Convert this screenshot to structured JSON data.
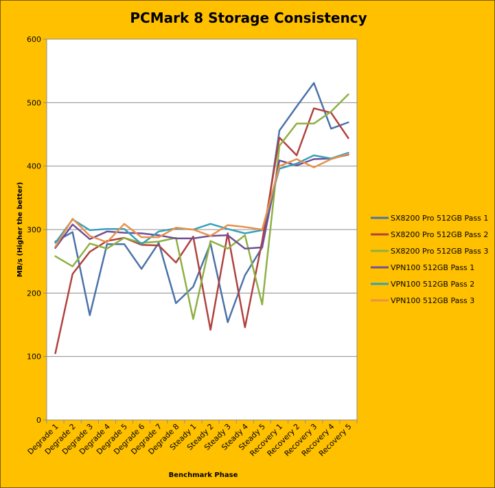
{
  "chart_data": {
    "type": "line",
    "title": "PCMark 8 Storage Consistency",
    "xlabel": "Benchmark Phase",
    "ylabel": "MB/s (Higher the better)",
    "ylim": [
      0,
      600
    ],
    "yticks": [
      0,
      100,
      200,
      300,
      400,
      500,
      600
    ],
    "grid": "horizontal",
    "legend_position": "right",
    "categories": [
      "Degrade 1",
      "Degrade 2",
      "Degrade 3",
      "Degrade 4",
      "Degrade 5",
      "Degrade 6",
      "Degrade 7",
      "Degrade 8",
      "Steady 1",
      "Steady 2",
      "Steady 3",
      "Steady 4",
      "Steady 5",
      "Recovery 1",
      "Recovery 2",
      "Recovery 3",
      "Recovery 4",
      "Recovery 5"
    ],
    "series": [
      {
        "name": "SX8200 Pro 512GB Pass 1",
        "color": "#4a72a8",
        "values": [
          281,
          296,
          165,
          277,
          277,
          238,
          279,
          184,
          210,
          278,
          154,
          228,
          272,
          456,
          494,
          531,
          459,
          469
        ]
      },
      {
        "name": "SX8200 Pro 512GB Pass 2",
        "color": "#b0413e",
        "values": [
          105,
          230,
          265,
          282,
          287,
          276,
          275,
          248,
          289,
          142,
          294,
          146,
          282,
          445,
          417,
          491,
          484,
          444
        ]
      },
      {
        "name": "SX8200 Pro 512GB Pass 3",
        "color": "#8db043",
        "values": [
          258,
          242,
          278,
          270,
          287,
          279,
          281,
          287,
          159,
          282,
          270,
          291,
          182,
          432,
          467,
          467,
          486,
          513
        ]
      },
      {
        "name": "VPN100 512GB Pass 1",
        "color": "#6f4f96",
        "values": [
          271,
          308,
          285,
          297,
          295,
          294,
          291,
          286,
          286,
          290,
          291,
          270,
          272,
          409,
          401,
          411,
          412,
          418
        ]
      },
      {
        "name": "VPN100 512GB Pass 2",
        "color": "#37a0b7",
        "values": [
          279,
          316,
          299,
          301,
          301,
          277,
          297,
          302,
          300,
          309,
          301,
          294,
          299,
          396,
          404,
          417,
          412,
          421
        ]
      },
      {
        "name": "VPN100 512GB Pass 3",
        "color": "#e8914a",
        "values": [
          273,
          317,
          290,
          280,
          309,
          288,
          288,
          303,
          300,
          290,
          307,
          304,
          300,
          400,
          411,
          398,
          411,
          419
        ]
      }
    ]
  }
}
